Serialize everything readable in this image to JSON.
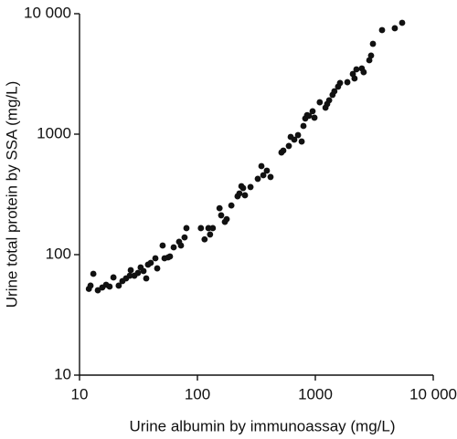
{
  "chart_data": {
    "type": "scatter",
    "x_label": "Urine albumin by immunoassay (mg/L)",
    "y_label": "Urine total protein by SSA (mg/L)",
    "xscale": "log",
    "yscale": "log",
    "xlim": [
      10,
      10000
    ],
    "ylim": [
      10,
      10000
    ],
    "xticks": [
      10,
      100,
      1000,
      {
        "value": 10000,
        "label": "10 000"
      }
    ],
    "yticks": [
      10,
      100,
      1000,
      {
        "value": 10000,
        "label": "10 000"
      }
    ],
    "color": "#111111",
    "x": [
      12,
      12.4,
      13.1,
      14.3,
      15.6,
      16.8,
      18,
      19.4,
      21.5,
      23.1,
      24.8,
      26.7,
      27.2,
      29.2,
      31.3,
      33,
      34.9,
      36.8,
      38.1,
      40.2,
      44,
      45.6,
      50.7,
      52.6,
      56.5,
      58.5,
      62.9,
      69.9,
      72.5,
      77.8,
      80.7,
      107,
      115,
      124,
      128,
      135,
      154,
      159,
      171,
      177,
      194,
      219,
      227,
      236,
      244,
      253,
      282,
      325,
      349,
      362,
      388,
      417,
      516,
      535,
      596,
      618,
      663,
      713,
      766,
      793,
      822,
      852,
      883,
      948,
      983,
      1090,
      1220,
      1260,
      1310,
      1400,
      1450,
      1560,
      1620,
      1870,
      2080,
      2150,
      2230,
      2480,
      2570,
      2870,
      2970,
      3080,
      3680,
      4720,
      5450
    ],
    "values": [
      52,
      55.3,
      69.3,
      50.6,
      53.4,
      56.2,
      54.3,
      64.7,
      55.3,
      60.3,
      63.5,
      66.9,
      74.3,
      66.9,
      70.5,
      78.3,
      73.1,
      63.5,
      82.6,
      85.5,
      93.3,
      76.9,
      119,
      93.3,
      94.9,
      96.6,
      115,
      128,
      119,
      139,
      166,
      166,
      134,
      166,
      147,
      166,
      243,
      212,
      187,
      197,
      256,
      305,
      322,
      370,
      357,
      311,
      364,
      426,
      543,
      456,
      498,
      441,
      705,
      731,
      798,
      949,
      901,
      982,
      869,
      1170,
      1350,
      1440,
      1420,
      1550,
      1370,
      1840,
      1660,
      1780,
      1910,
      2120,
      2270,
      2480,
      2660,
      2700,
      3160,
      2900,
      3450,
      3510,
      3270,
      4110,
      4490,
      5620,
      7310,
      7570,
      8400
    ]
  }
}
